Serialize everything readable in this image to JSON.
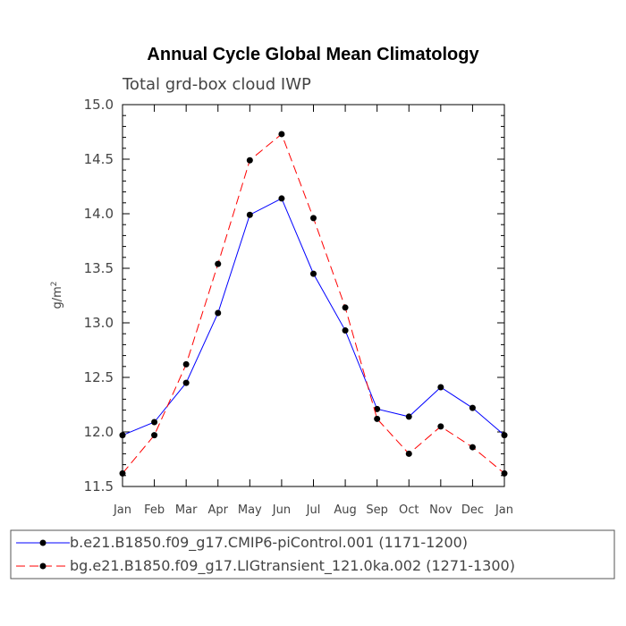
{
  "chart_data": {
    "type": "line",
    "title": "Annual Cycle Global Mean Climatology",
    "subtitle": "Total grd-box cloud IWP",
    "ylabel": "g/m",
    "ylabel_sup": "2",
    "xlabel": "",
    "categories": [
      "Jan",
      "Feb",
      "Mar",
      "Apr",
      "May",
      "Jun",
      "Jul",
      "Aug",
      "Sep",
      "Oct",
      "Nov",
      "Dec",
      "Jan"
    ],
    "ylim": [
      11.5,
      15.0
    ],
    "yticks": [
      "11.5",
      "12.0",
      "12.5",
      "13.0",
      "13.5",
      "14.0",
      "14.5",
      "15.0"
    ],
    "grid": false,
    "legend_position": "bottom",
    "series": [
      {
        "name": "b.e21.B1850.f09_g17.CMIP6-piControl.001 (1171-1200)",
        "color": "#0000ff",
        "dash": "solid",
        "values": [
          11.97,
          12.09,
          12.45,
          13.09,
          13.99,
          14.14,
          13.45,
          12.93,
          12.21,
          12.14,
          12.41,
          12.22,
          11.97
        ]
      },
      {
        "name": "bg.e21.B1850.f09_g17.LIGtransient_121.0ka.002 (1271-1300)",
        "color": "#ff0000",
        "dash": "dashed",
        "values": [
          11.62,
          11.97,
          12.62,
          13.54,
          14.49,
          14.73,
          13.96,
          13.14,
          12.12,
          11.8,
          12.05,
          11.86,
          11.62
        ]
      }
    ]
  }
}
